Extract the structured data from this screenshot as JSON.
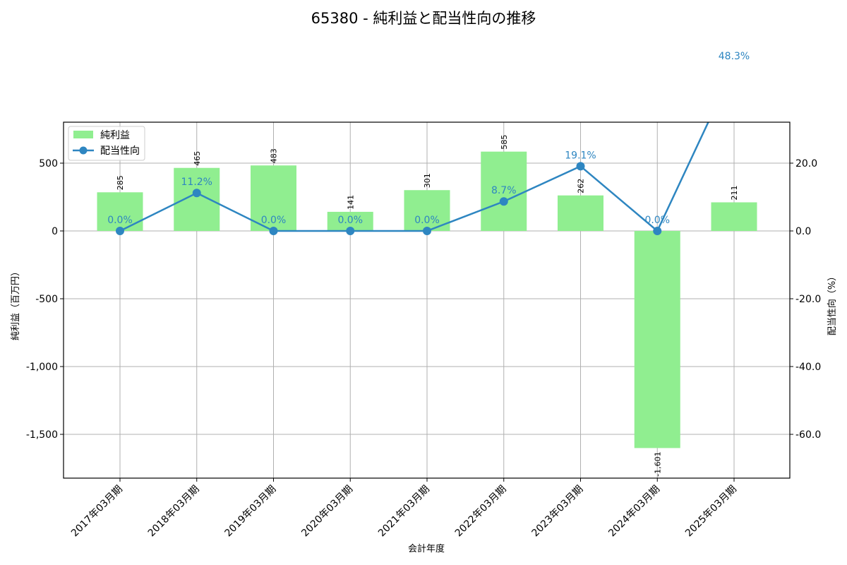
{
  "chart_data": {
    "type": "bar+line",
    "title": "65380 - 純利益と配当性向の推移",
    "xlabel": "会計年度",
    "ylabel": "純利益（百万円）",
    "y2label": "配当性向（%）",
    "categories": [
      "2017年03月期",
      "2018年03月期",
      "2019年03月期",
      "2020年03月期",
      "2021年03月期",
      "2022年03月期",
      "2023年03月期",
      "2024年03月期",
      "2025年03月期"
    ],
    "series": [
      {
        "name": "純利益",
        "type": "bar",
        "axis": "left",
        "color": "#90ee90",
        "values": [
          285,
          465,
          483,
          141,
          301,
          585,
          262,
          -1601,
          211
        ],
        "labels": [
          "285",
          "465",
          "483",
          "141",
          "301",
          "585",
          "262",
          "-1,601",
          "211"
        ]
      },
      {
        "name": "配当性向",
        "type": "line",
        "axis": "right",
        "color": "#2e86c1",
        "values": [
          0.0,
          11.2,
          0.0,
          0.0,
          0.0,
          8.7,
          19.1,
          0.0,
          48.3
        ],
        "labels": [
          "0.0%",
          "11.2%",
          "0.0%",
          "0.0%",
          "0.0%",
          "8.7%",
          "19.1%",
          "0.0%",
          "48.3%"
        ]
      }
    ],
    "yticks": [
      500,
      0,
      -500,
      -1000,
      -1500
    ],
    "ytick_labels": [
      "500",
      "0",
      "-500",
      "-1,000",
      "-1,500"
    ],
    "y2ticks": [
      20,
      0,
      -20,
      -40,
      -60
    ],
    "y2tick_labels": [
      "20.0",
      "0.0",
      "-20.0",
      "-40.0",
      "-60.0"
    ],
    "ylim": [
      -1830,
      800
    ],
    "y2lim": [
      -73.2,
      32
    ],
    "grid": true,
    "legend_position": "upper left"
  }
}
